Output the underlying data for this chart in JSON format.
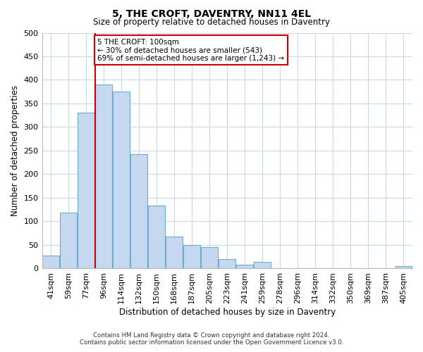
{
  "title": "5, THE CROFT, DAVENTRY, NN11 4EL",
  "subtitle": "Size of property relative to detached houses in Daventry",
  "xlabel": "Distribution of detached houses by size in Daventry",
  "ylabel": "Number of detached properties",
  "bar_labels": [
    "41sqm",
    "59sqm",
    "77sqm",
    "96sqm",
    "114sqm",
    "132sqm",
    "150sqm",
    "168sqm",
    "187sqm",
    "205sqm",
    "223sqm",
    "241sqm",
    "259sqm",
    "278sqm",
    "296sqm",
    "314sqm",
    "332sqm",
    "350sqm",
    "369sqm",
    "387sqm",
    "405sqm"
  ],
  "bar_values": [
    28,
    118,
    330,
    390,
    375,
    242,
    133,
    68,
    50,
    46,
    20,
    8,
    14,
    0,
    0,
    0,
    0,
    0,
    0,
    0,
    5
  ],
  "bar_color": "#c5d8ef",
  "bar_edge_color": "#6aadcf",
  "marker_index": 3,
  "marker_color": "#cc0000",
  "annotation_line1": "5 THE CROFT: 100sqm",
  "annotation_line2": "← 30% of detached houses are smaller (543)",
  "annotation_line3": "69% of semi-detached houses are larger (1,243) →",
  "annotation_box_color": "#ffffff",
  "annotation_box_edge": "#cc0000",
  "ylim": [
    0,
    500
  ],
  "yticks": [
    0,
    50,
    100,
    150,
    200,
    250,
    300,
    350,
    400,
    450,
    500
  ],
  "footnote1": "Contains HM Land Registry data © Crown copyright and database right 2024.",
  "footnote2": "Contains public sector information licensed under the Open Government Licence v3.0.",
  "background_color": "#ffffff",
  "grid_color": "#c8d8e8"
}
